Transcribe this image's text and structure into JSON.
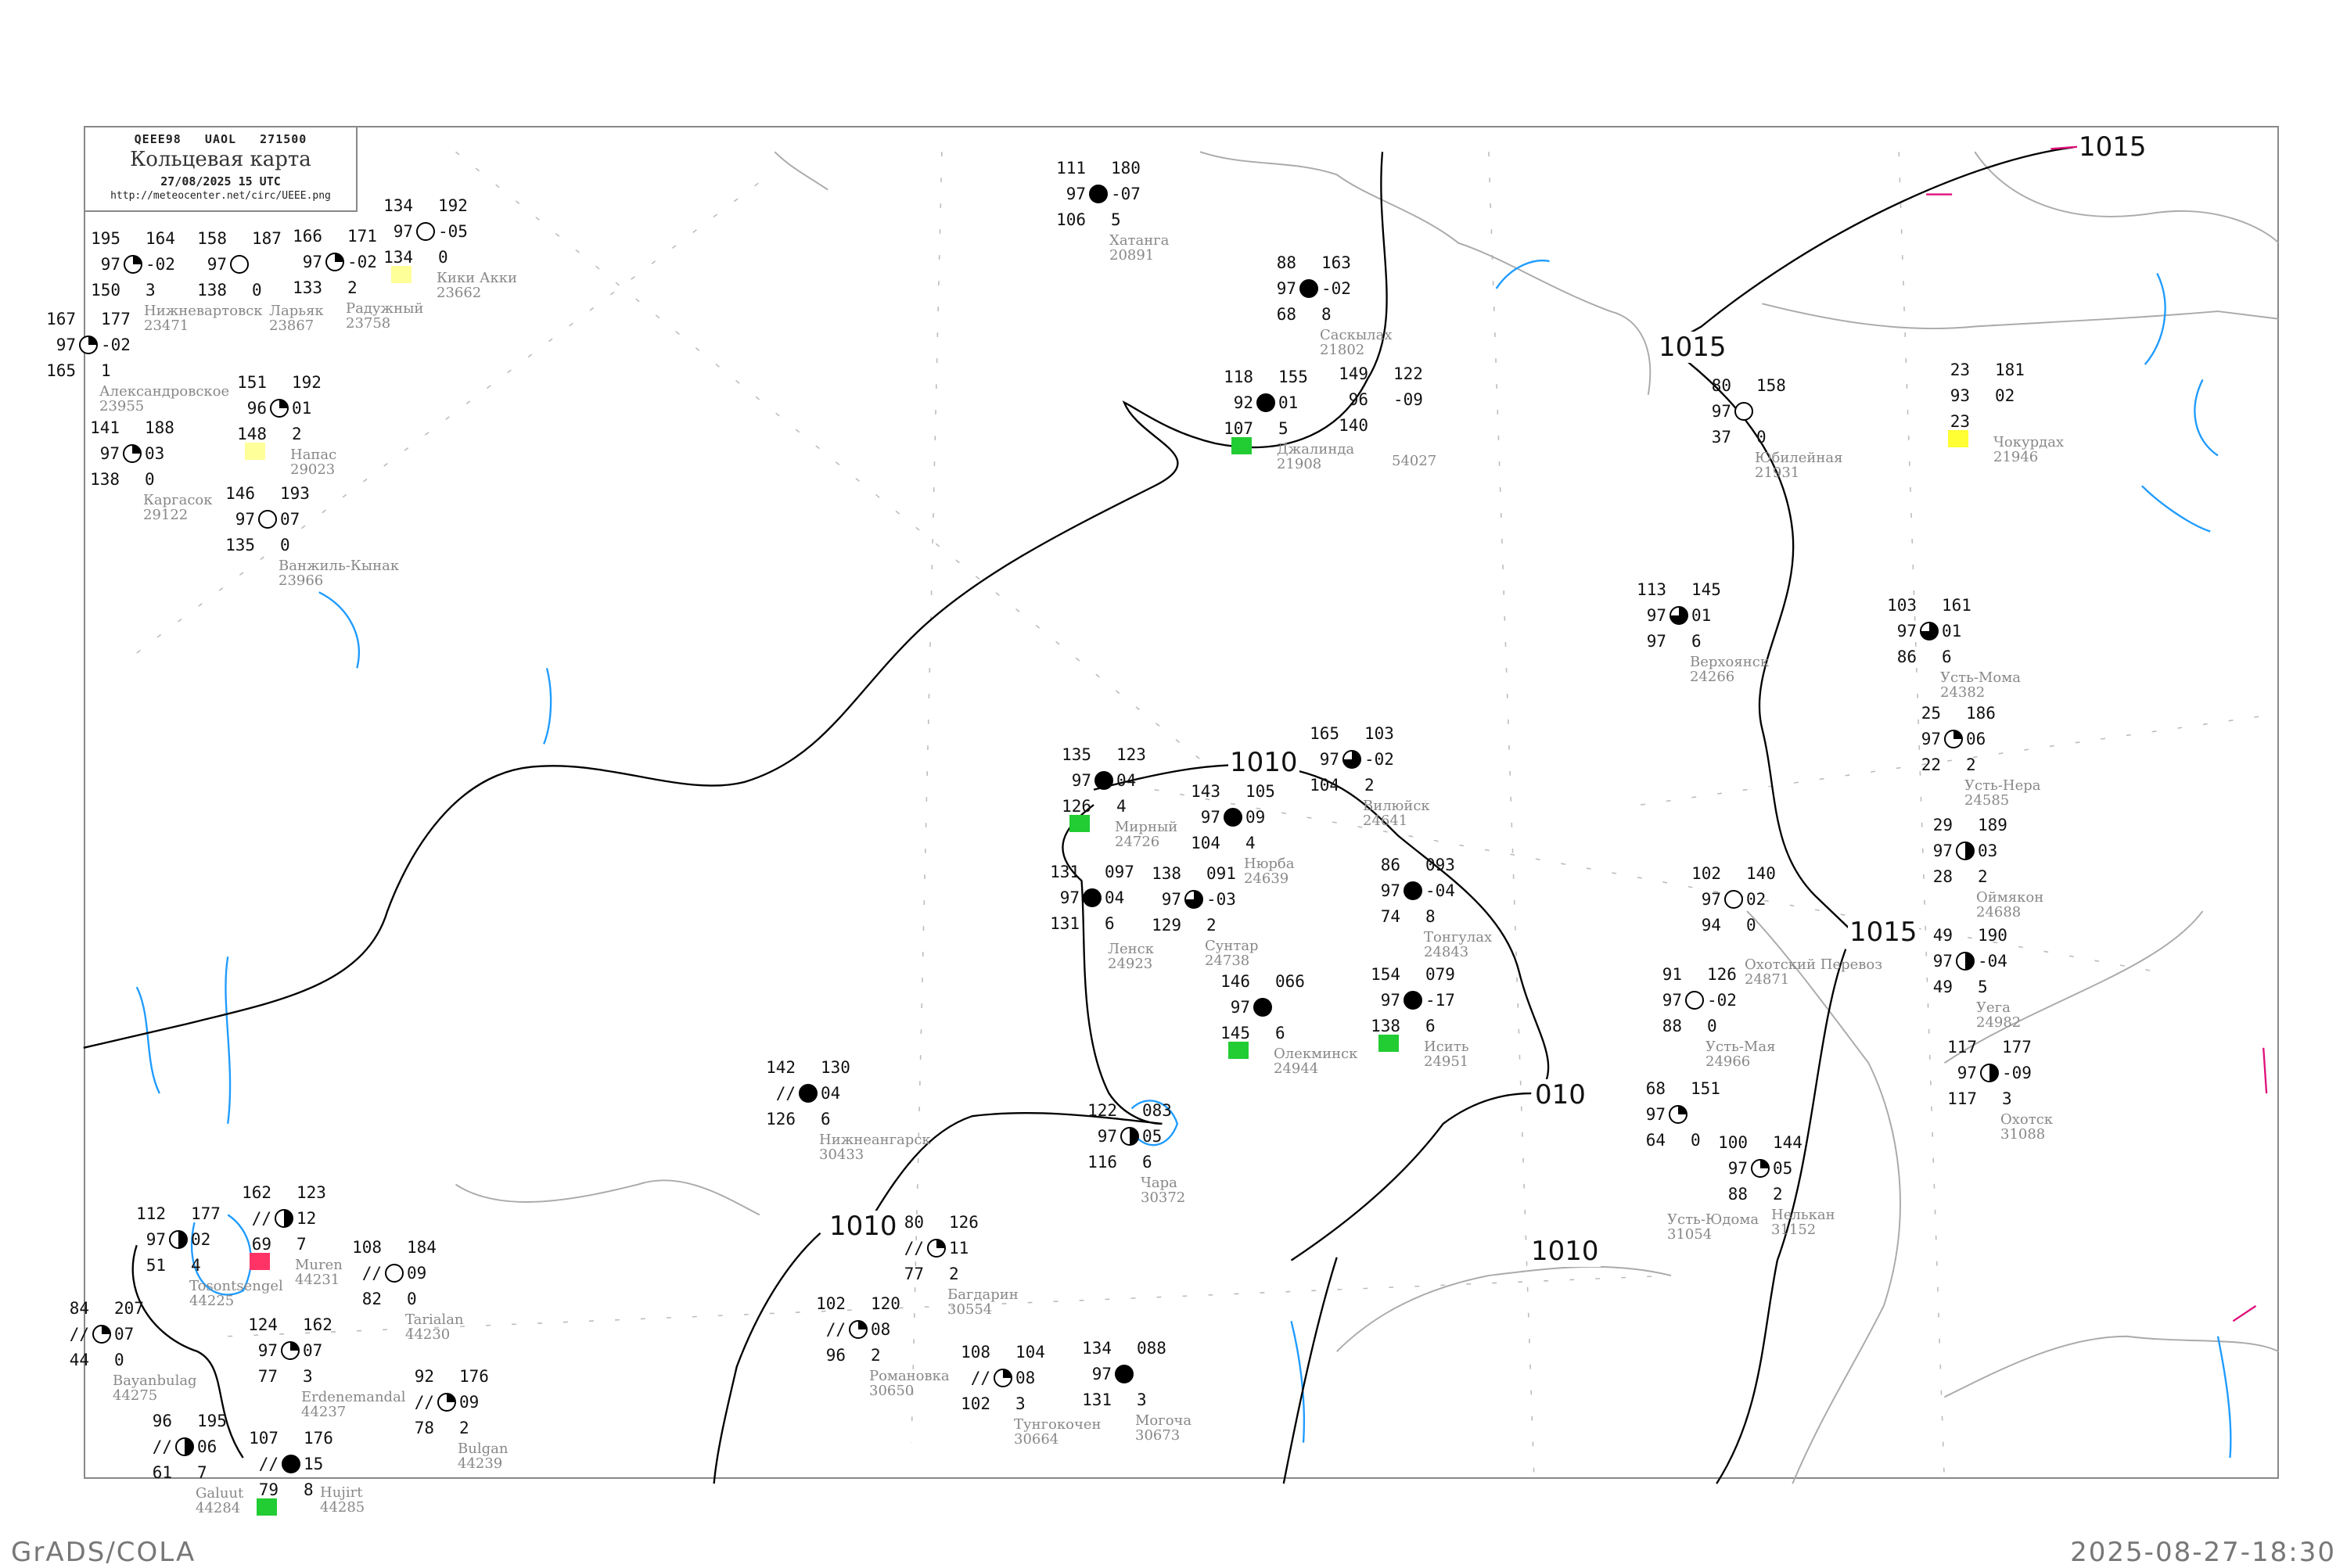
{
  "header": {
    "code": "QEEE98   UAOL   271500",
    "title": "Кольцевая карта",
    "datetime": "27/08/2025 15 UTC",
    "url": "http://meteocenter.net/circ/UEEE.png"
  },
  "footer": {
    "left": "GrADS/COLA",
    "right": "2025-08-27-18:30"
  },
  "isobar_labels": [
    "1015",
    "1015",
    "1015",
    "1010",
    "1010",
    "1010",
    "010"
  ],
  "marker_colors": {
    "green": "#22cc33",
    "yellow": "#ffff33",
    "paleyellow": "#ffff99",
    "red": "#ff3366"
  },
  "line_colors": {
    "isobar": "#000000",
    "coast": "#aaaaaa",
    "water": "#1e9bff",
    "grid": "#bbbbbb"
  },
  "stations": [
    {
      "name": "Хатанга",
      "index": "20891",
      "tl": "111",
      "tr": "180",
      "ml": "97",
      "mr": "-07",
      "bl": "106",
      "br": "5",
      "cover": 1
    },
    {
      "name": "Саскылах",
      "index": "21802",
      "tl": "88",
      "tr": "163",
      "ml": "97",
      "mr": "-02",
      "bl": "68",
      "br": "8",
      "cover": 1
    },
    {
      "name": "Джалинда",
      "index": "21908",
      "tl": "118",
      "tr": "155",
      "ml": "92",
      "mr": "01",
      "bl": "107",
      "br": "5",
      "cover": 1,
      "marker": "green"
    },
    {
      "name": "",
      "index": "54027",
      "tl": "149",
      "tr": "122",
      "ml": "96",
      "mr": "-09",
      "bl": "140",
      "br": "",
      "cover": -1
    },
    {
      "name": "Мирный",
      "index": "24726",
      "tl": "135",
      "tr": "123",
      "ml": "97",
      "mr": "04",
      "bl": "126",
      "br": "4",
      "cover": 1,
      "marker": "green"
    },
    {
      "name": "Нюрба",
      "index": "24639",
      "tl": "143",
      "tr": "105",
      "ml": "97",
      "mr": "09",
      "bl": "104",
      "br": "4",
      "cover": 1
    },
    {
      "name": "Вилюйск",
      "index": "24641",
      "tl": "165",
      "tr": "103",
      "ml": "97",
      "mr": "-02",
      "bl": "104",
      "br": "2",
      "cover": 0.75
    },
    {
      "name": "Сунтар",
      "index": "24738",
      "tl": "138",
      "tr": "091",
      "ml": "97",
      "mr": "-03",
      "bl": "129",
      "br": "2",
      "cover": 0.75
    },
    {
      "name": "Ленск",
      "index": "24923",
      "tl": "131",
      "tr": "097",
      "ml": "97",
      "mr": "04",
      "bl": "131",
      "br": "6",
      "cover": 1
    },
    {
      "name": "Олекминск",
      "index": "24944",
      "tl": "146",
      "tr": "066",
      "ml": "97",
      "mr": "",
      "bl": "145",
      "br": "6",
      "cover": 1,
      "marker": "green"
    },
    {
      "name": "Тонгулах",
      "index": "24843",
      "tl": "86",
      "tr": "093",
      "ml": "97",
      "mr": "-04",
      "bl": "74",
      "br": "8",
      "cover": 1
    },
    {
      "name": "Исить",
      "index": "24951",
      "tl": "154",
      "tr": "079",
      "ml": "97",
      "mr": "-17",
      "bl": "138",
      "br": "6",
      "cover": 1,
      "marker": "green"
    },
    {
      "name": "Юбилейная",
      "index": "21931",
      "tl": "80",
      "tr": "158",
      "ml": "97",
      "mr": "",
      "bl": "37",
      "br": "0",
      "cover": 0
    },
    {
      "name": "Чокурдах",
      "index": "21946",
      "tl": "23",
      "tr": "181",
      "ml": "93",
      "mr": "02",
      "bl": "23",
      "br": "",
      "cover": -1,
      "marker": "yellow"
    },
    {
      "name": "Верхоянск",
      "index": "24266",
      "tl": "113",
      "tr": "145",
      "ml": "97",
      "mr": "01",
      "bl": "97",
      "br": "6",
      "cover": 0.75
    },
    {
      "name": "Усть-Мома",
      "index": "24382",
      "tl": "103",
      "tr": "161",
      "ml": "97",
      "mr": "01",
      "bl": "86",
      "br": "6",
      "cover": 0.75
    },
    {
      "name": "Усть-Нера",
      "index": "24585",
      "tl": "25",
      "tr": "186",
      "ml": "97",
      "mr": "06",
      "bl": "22",
      "br": "2",
      "cover": 0.25
    },
    {
      "name": "Оймякон",
      "index": "24688",
      "tl": "29",
      "tr": "189",
      "ml": "97",
      "mr": "03",
      "bl": "28",
      "br": "2",
      "cover": 0.5
    },
    {
      "name": "Уега",
      "index": "24982",
      "tl": "49",
      "tr": "190",
      "ml": "97",
      "mr": "-04",
      "bl": "49",
      "br": "5",
      "cover": 0.5
    },
    {
      "name": "Охотск",
      "index": "31088",
      "tl": "117",
      "tr": "177",
      "ml": "97",
      "mr": "-09",
      "bl": "117",
      "br": "3",
      "cover": 0.5
    },
    {
      "name": "Нелькан",
      "index": "31152",
      "tl": "100",
      "tr": "144",
      "ml": "97",
      "mr": "05",
      "bl": "88",
      "br": "2",
      "cover": 0.25
    },
    {
      "name": "Охотский Перевоз",
      "index": "24871",
      "tl": "102",
      "tr": "140",
      "ml": "97",
      "mr": "02",
      "bl": "94",
      "br": "0",
      "cover": 0
    },
    {
      "name": "Усть-Мая",
      "index": "24966",
      "tl": "91",
      "tr": "126",
      "ml": "97",
      "mr": "-02",
      "bl": "88",
      "br": "0",
      "cover": 0
    },
    {
      "name": "Усть-Юдома",
      "index": "31054",
      "tl": "68",
      "tr": "151",
      "ml": "97",
      "mr": "",
      "bl": "64",
      "br": "0",
      "cover": 0.25
    },
    {
      "name": "Чара",
      "index": "30372",
      "tl": "122",
      "tr": "083",
      "ml": "97",
      "mr": "05",
      "bl": "116",
      "br": "6",
      "cover": 0.5
    },
    {
      "name": "Багдарин",
      "index": "30554",
      "tl": "80",
      "tr": "126",
      "ml": "//",
      "mr": "11",
      "bl": "77",
      "br": "2",
      "cover": 0.25
    },
    {
      "name": "Романовка",
      "index": "30650",
      "tl": "102",
      "tr": "120",
      "ml": "//",
      "mr": "08",
      "bl": "96",
      "br": "2",
      "cover": 0.25
    },
    {
      "name": "Тунгокочен",
      "index": "30664",
      "tl": "108",
      "tr": "104",
      "ml": "//",
      "mr": "08",
      "bl": "102",
      "br": "3",
      "cover": 0.25
    },
    {
      "name": "Могоча",
      "index": "30673",
      "tl": "134",
      "tr": "088",
      "ml": "97",
      "mr": "",
      "bl": "131",
      "br": "3",
      "cover": 1
    },
    {
      "name": "Нижнеангарск",
      "index": "30433",
      "tl": "142",
      "tr": "130",
      "ml": "//",
      "mr": "04",
      "bl": "126",
      "br": "6",
      "cover": 1
    },
    {
      "name": "Нижневартовск",
      "index": "23471",
      "tl": "195",
      "tr": "164",
      "ml": "97",
      "mr": "-02",
      "bl": "150",
      "br": "3",
      "cover": 0.25
    },
    {
      "name": "Александровское",
      "index": "23955",
      "tl": "167",
      "tr": "177",
      "ml": "97",
      "mr": "-02",
      "bl": "165",
      "br": "1",
      "cover": 0.25
    },
    {
      "name": "Ларьяк",
      "index": "23867",
      "tl": "158",
      "tr": "187",
      "ml": "97",
      "mr": "",
      "bl": "138",
      "br": "0",
      "cover": 0
    },
    {
      "name": "Радужный",
      "index": "23758",
      "tl": "166",
      "tr": "171",
      "ml": "97",
      "mr": "-02",
      "bl": "133",
      "br": "2",
      "cover": 0.25
    },
    {
      "name": "Кики Акки",
      "index": "23662",
      "tl": "134",
      "tr": "192",
      "ml": "97",
      "mr": "-05",
      "bl": "134",
      "br": "0",
      "cover": 0,
      "marker": "paleyellow"
    },
    {
      "name": "Каргасок",
      "index": "29122",
      "tl": "141",
      "tr": "188",
      "ml": "97",
      "mr": "03",
      "bl": "138",
      "br": "0",
      "cover": 0.25
    },
    {
      "name": "Напас",
      "index": "29023",
      "tl": "151",
      "tr": "192",
      "ml": "96",
      "mr": "01",
      "bl": "148",
      "br": "2",
      "cover": 0.25,
      "marker": "paleyellow"
    },
    {
      "name": "Ванжиль-Кынак",
      "index": "23966",
      "tl": "146",
      "tr": "193",
      "ml": "97",
      "mr": "07",
      "bl": "135",
      "br": "0",
      "cover": 0
    },
    {
      "name": "Tosontsengel",
      "index": "44225",
      "tl": "112",
      "tr": "177",
      "ml": "97",
      "mr": "02",
      "bl": "51",
      "br": "4",
      "cover": 0.5
    },
    {
      "name": "Muren",
      "index": "44231",
      "tl": "162",
      "tr": "123",
      "ml": "//",
      "mr": "12",
      "bl": "69",
      "br": "7",
      "cover": 0.5,
      "marker": "red"
    },
    {
      "name": "Tarialan",
      "index": "44230",
      "tl": "108",
      "tr": "184",
      "ml": "//",
      "mr": "09",
      "bl": "82",
      "br": "0",
      "cover": 0
    },
    {
      "name": "Erdenemandal",
      "index": "44237",
      "tl": "124",
      "tr": "162",
      "ml": "97",
      "mr": "07",
      "bl": "77",
      "br": "3",
      "cover": 0.25
    },
    {
      "name": "Bulgan",
      "index": "44239",
      "tl": "92",
      "tr": "176",
      "ml": "//",
      "mr": "09",
      "bl": "78",
      "br": "2",
      "cover": 0.25
    },
    {
      "name": "Bayanbulag",
      "index": "44275",
      "tl": "84",
      "tr": "207",
      "ml": "//",
      "mr": "07",
      "bl": "44",
      "br": "0",
      "cover": 0.25
    },
    {
      "name": "Hujirt",
      "index": "44285",
      "tl": "107",
      "tr": "176",
      "ml": "//",
      "mr": "15",
      "bl": "79",
      "br": "8",
      "cover": 1,
      "marker": "green"
    },
    {
      "name": "Galuut",
      "index": "44284",
      "tl": "96",
      "tr": "195",
      "ml": "//",
      "mr": "06",
      "bl": "61",
      "br": "7",
      "cover": 0.5
    }
  ]
}
